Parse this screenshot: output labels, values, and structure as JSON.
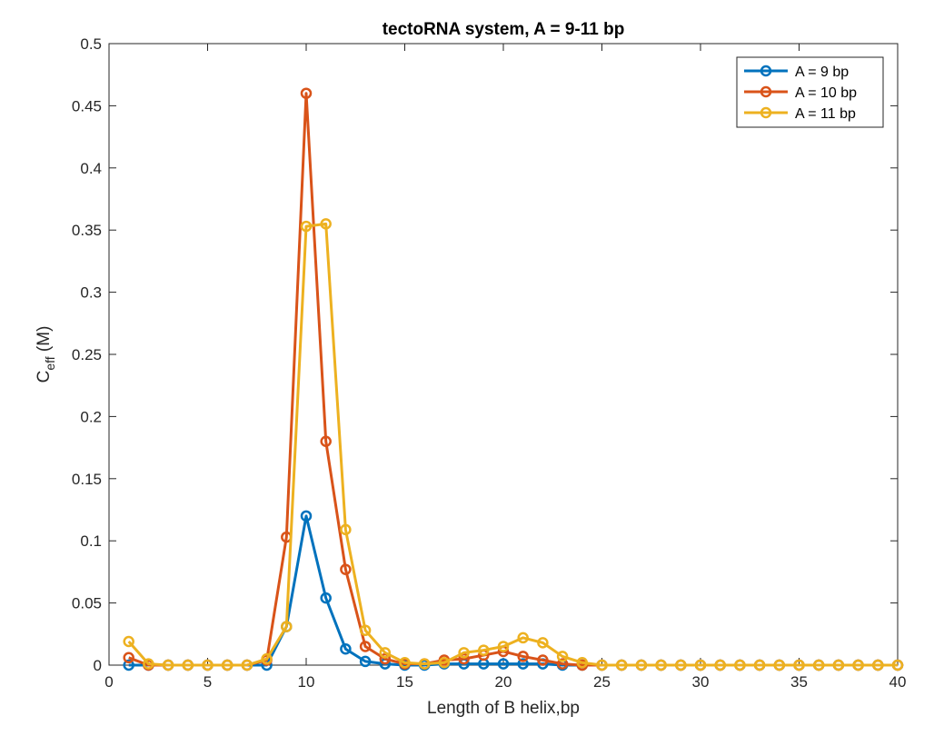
{
  "chart_data": {
    "type": "line",
    "title": "tectoRNA system, A = 9-11 bp",
    "xlabel": "Length of B helix,bp",
    "ylabel": {
      "main": "C",
      "sub": "eff",
      "unit": " (M)"
    },
    "xlim": [
      0,
      40
    ],
    "ylim": [
      0,
      0.5
    ],
    "xticks": [
      0,
      5,
      10,
      15,
      20,
      25,
      30,
      35,
      40
    ],
    "xtick_labels": [
      "0",
      "5",
      "10",
      "15",
      "20",
      "25",
      "30",
      "35",
      "40"
    ],
    "yticks": [
      0,
      0.05,
      0.1,
      0.15,
      0.2,
      0.25,
      0.3,
      0.35,
      0.4,
      0.45,
      0.5
    ],
    "ytick_labels": [
      "0",
      "0.05",
      "0.1",
      "0.15",
      "0.2",
      "0.25",
      "0.3",
      "0.35",
      "0.4",
      "0.45",
      "0.5"
    ],
    "grid": false,
    "legend_position": "top-right",
    "x": [
      1,
      2,
      3,
      4,
      5,
      6,
      7,
      8,
      9,
      10,
      11,
      12,
      13,
      14,
      15,
      16,
      17,
      18,
      19,
      20,
      21,
      22,
      23,
      24,
      25,
      26,
      27,
      28,
      29,
      30,
      31,
      32,
      33,
      34,
      35,
      36,
      37,
      38,
      39,
      40
    ],
    "series": [
      {
        "name": "A = 9 bp",
        "color": "#0072BD",
        "values": [
          0,
          0,
          0,
          0,
          0,
          0,
          0,
          0,
          0.031,
          0.12,
          0.054,
          0.013,
          0.003,
          0.001,
          0,
          0,
          0.001,
          0.001,
          0.001,
          0.001,
          0.001,
          0.001,
          0,
          0,
          0,
          0,
          0,
          0,
          0,
          0,
          0,
          0,
          0,
          0,
          0,
          0,
          0,
          0,
          0,
          0
        ]
      },
      {
        "name": "A = 10 bp",
        "color": "#D95319",
        "values": [
          0.006,
          0,
          0,
          0,
          0,
          0,
          0,
          0.004,
          0.103,
          0.46,
          0.18,
          0.077,
          0.015,
          0.005,
          0.001,
          0.001,
          0.004,
          0.005,
          0.008,
          0.011,
          0.007,
          0.004,
          0.001,
          0,
          0,
          0,
          0,
          0,
          0,
          0,
          0,
          0,
          0,
          0,
          0,
          0,
          0,
          0,
          0,
          0
        ]
      },
      {
        "name": "A = 11 bp",
        "color": "#EDB120",
        "values": [
          0.019,
          0.001,
          0,
          0,
          0,
          0,
          0,
          0.005,
          0.031,
          0.353,
          0.355,
          0.109,
          0.028,
          0.01,
          0.002,
          0.001,
          0.002,
          0.01,
          0.012,
          0.015,
          0.022,
          0.018,
          0.007,
          0.002,
          0,
          0,
          0,
          0,
          0,
          0,
          0,
          0,
          0,
          0,
          0,
          0,
          0,
          0,
          0,
          0
        ]
      }
    ]
  }
}
